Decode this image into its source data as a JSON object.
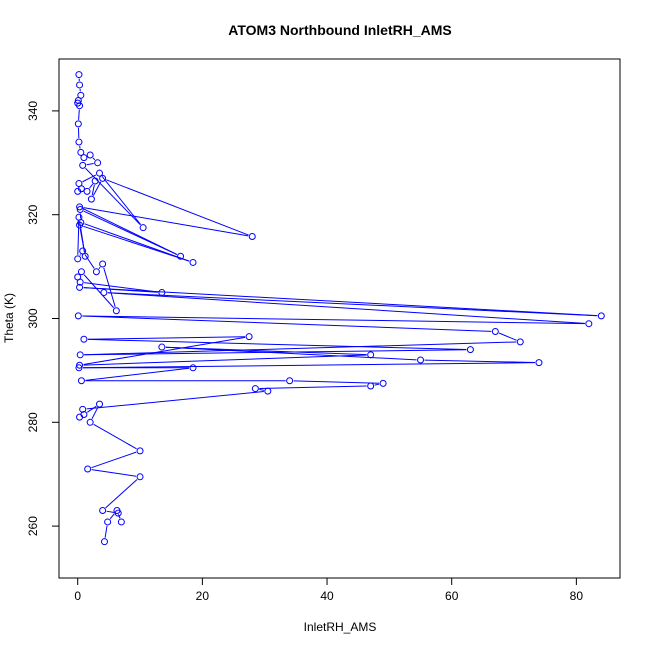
{
  "chart_data": {
    "type": "line",
    "title": "ATOM3 Northbound InletRH_AMS",
    "xlabel": "InletRH_AMS",
    "ylabel": "Theta (K)",
    "xlim": [
      -3,
      87
    ],
    "ylim": [
      250,
      350
    ],
    "xticks": [
      0,
      20,
      40,
      60,
      80
    ],
    "yticks": [
      260,
      280,
      300,
      320,
      340
    ],
    "grid": false,
    "line_color": "#0000ff",
    "marker": "open-circle",
    "series": [
      {
        "x": [
          0.2,
          0.3,
          0.5,
          0.1,
          0.0,
          0.3,
          0.1,
          0.2,
          0.5,
          1.0,
          2.0,
          3.2,
          0.8,
          10.5,
          3.5,
          0.2,
          0.6,
          0.0,
          1.5,
          2.8,
          2.2,
          4.0,
          28.0,
          0.3,
          16.5,
          0.4,
          0.5,
          18.5,
          0.3,
          1.2,
          0.2,
          0.0,
          0.8,
          3.0,
          4.0,
          6.2,
          0.6,
          0.0,
          0.4,
          13.5,
          0.3,
          84.0,
          4.2,
          82.0,
          0.1,
          67.0,
          71.0,
          0.4,
          63.0,
          1.0,
          27.5,
          0.3,
          47.0,
          13.5,
          55.0,
          74.0,
          0.2,
          18.5,
          0.6,
          34.0,
          49.0,
          47.0,
          28.5,
          30.5,
          0.8,
          0.3,
          1.0,
          3.5,
          2.0,
          10.0,
          1.6,
          10.0,
          4.0,
          6.5,
          7.0,
          6.3,
          4.8,
          4.3
        ],
        "y": [
          347,
          345,
          343,
          342,
          341.5,
          341,
          337.5,
          334,
          332,
          331,
          331.5,
          330,
          329.5,
          317.5,
          328,
          326,
          325,
          324.5,
          324.5,
          326.5,
          323,
          327,
          315.8,
          321.5,
          312,
          321,
          318.5,
          310.8,
          318,
          312,
          319.5,
          311.5,
          313,
          309,
          310.5,
          301.5,
          309,
          308,
          307,
          305,
          306,
          300.5,
          305,
          299,
          300.5,
          297.5,
          295.5,
          293,
          294,
          296,
          296.5,
          291,
          293,
          294.5,
          292,
          291.5,
          290.5,
          290.5,
          288,
          288,
          287.5,
          287,
          286.5,
          286,
          282.5,
          281,
          281.5,
          283.5,
          280,
          274.5,
          271,
          269.5,
          263,
          262.5,
          260.8,
          263,
          260.8,
          257
        ]
      }
    ]
  }
}
